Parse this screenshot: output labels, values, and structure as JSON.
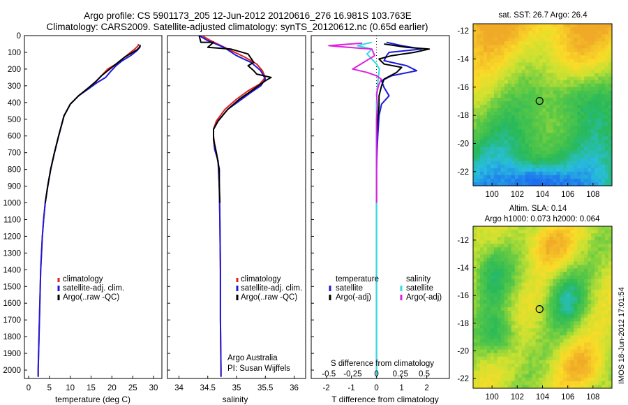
{
  "header": {
    "line1": "Argo profile: CS 5901173_205 12-Jun-2012 20120616_276 16.981S 103.763E",
    "line2": "Climatology: CARS2009. Satellite-adjusted climatology: synTS_20120612.nc (0.65d earlier)"
  },
  "colors": {
    "clim": "#e02020",
    "sat": "#1a1adc",
    "argo": "#000000",
    "sal_sat": "#33dddd",
    "sal_argo": "#e020e0"
  },
  "chart_data": [
    {
      "id": "temperature",
      "type": "line",
      "xlabel": "temperature (deg C)",
      "ylabel": "",
      "xlim": [
        -1,
        32
      ],
      "ylim": [
        2050,
        0
      ],
      "xticks": [
        "0",
        "5",
        "10",
        "15",
        "20",
        "25",
        "30"
      ],
      "xtick_values": [
        0,
        5,
        10,
        15,
        20,
        25,
        30
      ],
      "yticks": [
        "0",
        "100",
        "200",
        "300",
        "400",
        "500",
        "600",
        "700",
        "800",
        "900",
        "1000",
        "1100",
        "1200",
        "1300",
        "1400",
        "1500",
        "1600",
        "1700",
        "1800",
        "1900",
        "2000"
      ],
      "ytick_values": [
        0,
        100,
        200,
        300,
        400,
        500,
        600,
        700,
        800,
        900,
        1000,
        1100,
        1200,
        1300,
        1400,
        1500,
        1600,
        1700,
        1800,
        1900,
        2000
      ],
      "legend": [
        "climatology",
        "satellite-adj. clim.",
        "Argo(..raw -QC)"
      ],
      "series": [
        {
          "name": "climatology",
          "color_key": "clim",
          "points": [
            [
              26.4,
              50
            ],
            [
              26.3,
              60
            ],
            [
              25.5,
              80
            ],
            [
              24,
              110
            ],
            [
              22.5,
              140
            ],
            [
              21,
              170
            ],
            [
              19,
              200
            ],
            [
              17.5,
              240
            ],
            [
              16,
              280
            ],
            [
              14,
              320
            ],
            [
              12,
              360
            ],
            [
              10,
              410
            ],
            [
              8.5,
              480
            ],
            [
              7.2,
              600
            ],
            [
              6.2,
              700
            ],
            [
              5.3,
              800
            ],
            [
              4.6,
              900
            ],
            [
              4.0,
              1000
            ],
            [
              3.6,
              1100
            ],
            [
              3.3,
              1200
            ],
            [
              3.1,
              1300
            ],
            [
              2.9,
              1400
            ],
            [
              2.8,
              1500
            ],
            [
              2.7,
              1600
            ],
            [
              2.6,
              1700
            ],
            [
              2.5,
              1800
            ],
            [
              2.4,
              1900
            ],
            [
              2.3,
              2000
            ],
            [
              2.3,
              2040
            ]
          ]
        },
        {
          "name": "satellite-adj. clim.",
          "color_key": "sat",
          "points": [
            [
              26.8,
              60
            ],
            [
              26.7,
              70
            ],
            [
              26,
              90
            ],
            [
              24.5,
              120
            ],
            [
              22.5,
              150
            ],
            [
              21,
              180
            ],
            [
              19.5,
              220
            ],
            [
              18.5,
              250
            ],
            [
              16.5,
              280
            ],
            [
              14.3,
              320
            ],
            [
              12,
              360
            ],
            [
              10,
              410
            ],
            [
              8.5,
              480
            ],
            [
              7.2,
              600
            ],
            [
              6.2,
              700
            ],
            [
              5.3,
              800
            ],
            [
              4.6,
              900
            ],
            [
              4.0,
              1000
            ],
            [
              3.6,
              1100
            ],
            [
              3.3,
              1200
            ],
            [
              3.1,
              1300
            ],
            [
              2.9,
              1400
            ],
            [
              2.8,
              1500
            ],
            [
              2.7,
              1600
            ],
            [
              2.6,
              1700
            ],
            [
              2.5,
              1800
            ],
            [
              2.4,
              1900
            ],
            [
              2.3,
              2000
            ],
            [
              2.3,
              2040
            ]
          ]
        },
        {
          "name": "Argo(..raw -QC)",
          "color_key": "argo",
          "points": [
            [
              26.8,
              55
            ],
            [
              26.6,
              70
            ],
            [
              26,
              85
            ],
            [
              25,
              100
            ],
            [
              23,
              130
            ],
            [
              21.5,
              160
            ],
            [
              19.5,
              200
            ],
            [
              17.5,
              240
            ],
            [
              16.3,
              270
            ],
            [
              14.5,
              310
            ],
            [
              12,
              360
            ],
            [
              10,
              410
            ],
            [
              8.5,
              480
            ],
            [
              7.2,
              600
            ],
            [
              6.2,
              700
            ],
            [
              5.3,
              800
            ],
            [
              4.6,
              900
            ],
            [
              4.0,
              1000
            ]
          ]
        }
      ]
    },
    {
      "id": "salinity",
      "type": "line",
      "xlabel": "salinity",
      "xlim": [
        33.8,
        36.2
      ],
      "ylim": [
        2050,
        0
      ],
      "xticks": [
        "34",
        "34.5",
        "35",
        "35.5",
        "36"
      ],
      "xtick_values": [
        34,
        34.5,
        35,
        35.5,
        36
      ],
      "legend": [
        "climatology",
        "satellite-adj. clim.",
        "Argo(..raw -QC)"
      ],
      "annotation": [
        "Argo Australia",
        "PI: Susan Wijffels"
      ],
      "series": [
        {
          "name": "climatology",
          "color_key": "clim",
          "points": [
            [
              34.4,
              0
            ],
            [
              34.55,
              30
            ],
            [
              34.85,
              80
            ],
            [
              35.15,
              130
            ],
            [
              35.35,
              170
            ],
            [
              35.45,
              210
            ],
            [
              35.5,
              250
            ],
            [
              35.4,
              290
            ],
            [
              35.2,
              330
            ],
            [
              35.0,
              380
            ],
            [
              34.8,
              440
            ],
            [
              34.65,
              510
            ],
            [
              34.6,
              560
            ],
            [
              34.6,
              600
            ],
            [
              34.62,
              650
            ],
            [
              34.65,
              700
            ],
            [
              34.68,
              760
            ],
            [
              34.7,
              900
            ],
            [
              34.71,
              1100
            ],
            [
              34.72,
              1400
            ],
            [
              34.72,
              1700
            ],
            [
              34.73,
              2000
            ],
            [
              34.73,
              2040
            ]
          ]
        },
        {
          "name": "satellite-adj. clim.",
          "color_key": "sat",
          "points": [
            [
              34.35,
              0
            ],
            [
              34.5,
              30
            ],
            [
              34.78,
              70
            ],
            [
              35.0,
              120
            ],
            [
              35.25,
              160
            ],
            [
              35.42,
              210
            ],
            [
              35.5,
              260
            ],
            [
              35.42,
              300
            ],
            [
              35.25,
              340
            ],
            [
              35.05,
              390
            ],
            [
              34.85,
              440
            ],
            [
              34.68,
              510
            ],
            [
              34.6,
              560
            ],
            [
              34.6,
              620
            ],
            [
              34.62,
              680
            ],
            [
              34.68,
              750
            ],
            [
              34.7,
              900
            ],
            [
              34.71,
              1100
            ],
            [
              34.72,
              1400
            ],
            [
              34.72,
              1700
            ],
            [
              34.73,
              2000
            ],
            [
              34.73,
              2040
            ]
          ]
        },
        {
          "name": "Argo(..raw -QC)",
          "color_key": "argo",
          "points": [
            [
              34.35,
              0
            ],
            [
              34.38,
              40
            ],
            [
              34.6,
              40
            ],
            [
              34.5,
              70
            ],
            [
              34.9,
              80
            ],
            [
              35.2,
              110
            ],
            [
              35.3,
              160
            ],
            [
              35.2,
              180
            ],
            [
              35.3,
              210
            ],
            [
              35.35,
              230
            ],
            [
              35.6,
              250
            ],
            [
              35.5,
              270
            ],
            [
              35.3,
              320
            ],
            [
              35.05,
              380
            ],
            [
              34.85,
              440
            ],
            [
              34.68,
              510
            ],
            [
              34.6,
              560
            ],
            [
              34.6,
              620
            ],
            [
              34.65,
              700
            ],
            [
              34.7,
              800
            ],
            [
              34.7,
              900
            ],
            [
              34.71,
              1000
            ]
          ]
        }
      ]
    },
    {
      "id": "difference",
      "type": "line",
      "xlabel": "T difference from climatology",
      "xlabel_top": "S difference from climatology",
      "xlim": [
        -2.6,
        2.9
      ],
      "ylim": [
        2050,
        0
      ],
      "xticks": [
        "-2",
        "-1",
        "0",
        "1",
        "2"
      ],
      "xtick_values": [
        -2,
        -1,
        0,
        1,
        2
      ],
      "sticks": [
        "-0.5",
        "-0.25",
        "0",
        "0.25",
        "0.5"
      ],
      "stick_values": [
        -0.5,
        -0.25,
        0,
        0.25,
        0.5
      ],
      "legend_temp": [
        "temperature",
        "satellite",
        "Argo(-adj)"
      ],
      "legend_sal": [
        "salinity",
        "satellite",
        "Argo(-adj)"
      ],
      "series": [
        {
          "name": "T satellite",
          "color_key": "sat",
          "points": [
            [
              0.4,
              40
            ],
            [
              1.0,
              60
            ],
            [
              1.8,
              80
            ],
            [
              0.5,
              100
            ],
            [
              0.4,
              120
            ],
            [
              0.3,
              150
            ],
            [
              1.2,
              180
            ],
            [
              1.6,
              210
            ],
            [
              0.6,
              240
            ],
            [
              0.2,
              270
            ],
            [
              0.3,
              310
            ],
            [
              0.5,
              360
            ],
            [
              0.2,
              410
            ],
            [
              0.1,
              480
            ],
            [
              0.05,
              600
            ],
            [
              0.02,
              700
            ],
            [
              0,
              800
            ],
            [
              0,
              1000
            ],
            [
              0,
              1300
            ],
            [
              0,
              1600
            ],
            [
              0,
              1900
            ],
            [
              0,
              2040
            ]
          ]
        },
        {
          "name": "T Argo(-adj)",
          "color_key": "argo",
          "points": [
            [
              0.3,
              50
            ],
            [
              1.2,
              70
            ],
            [
              2.1,
              80
            ],
            [
              1.5,
              100
            ],
            [
              0.6,
              120
            ],
            [
              0.1,
              140
            ],
            [
              0.3,
              170
            ],
            [
              1.0,
              190
            ],
            [
              0.8,
              220
            ],
            [
              0.3,
              260
            ],
            [
              0.2,
              300
            ],
            [
              0.1,
              360
            ],
            [
              0.1,
              420
            ],
            [
              0.05,
              500
            ],
            [
              0,
              600
            ],
            [
              0,
              1000
            ]
          ]
        },
        {
          "name": "S satellite",
          "color_key": "sal_sat",
          "points": [
            [
              -0.05,
              40
            ],
            [
              -0.2,
              60
            ],
            [
              -0.05,
              80
            ],
            [
              -0.1,
              110
            ],
            [
              -0.05,
              140
            ],
            [
              0,
              170
            ],
            [
              0.03,
              200
            ],
            [
              0.02,
              250
            ],
            [
              0.01,
              300
            ],
            [
              0,
              400
            ],
            [
              0,
              600
            ],
            [
              0,
              1000
            ],
            [
              0,
              1400
            ],
            [
              0,
              1700
            ],
            [
              0,
              2040
            ]
          ]
        },
        {
          "name": "S Argo(-adj)",
          "color_key": "sal_argo",
          "points": [
            [
              -0.15,
              45
            ],
            [
              -0.5,
              60
            ],
            [
              -0.3,
              70
            ],
            [
              -0.05,
              80
            ],
            [
              -0.02,
              120
            ],
            [
              -0.25,
              200
            ],
            [
              -0.1,
              220
            ],
            [
              0,
              240
            ],
            [
              0.05,
              260
            ],
            [
              0.02,
              300
            ],
            [
              0,
              350
            ],
            [
              0.01,
              420
            ],
            [
              0,
              500
            ],
            [
              0,
              700
            ],
            [
              0,
              1000
            ]
          ]
        }
      ]
    },
    {
      "id": "sst_map",
      "type": "heatmap",
      "title": "sat. SST: 26.7  Argo: 26.4",
      "xticks": [
        "100",
        "102",
        "104",
        "106",
        "108"
      ],
      "xtick_values": [
        100,
        102,
        104,
        106,
        108
      ],
      "yticks": [
        "-12",
        "-14",
        "-16",
        "-18",
        "-20",
        "-22"
      ],
      "ytick_values": [
        -12,
        -14,
        -16,
        -18,
        -20,
        -22
      ],
      "xlim": [
        98.5,
        109.5
      ],
      "ylim": [
        -23.0,
        -11.5
      ],
      "marker": [
        103.763,
        -16.981
      ]
    },
    {
      "id": "sla_map",
      "type": "heatmap",
      "title_line1": "Altim. SLA: 0.14",
      "title_line2": "Argo h1000: 0.073 h2000: 0.064",
      "xticks": [
        "100",
        "102",
        "104",
        "106",
        "108"
      ],
      "xtick_values": [
        100,
        102,
        104,
        106,
        108
      ],
      "yticks": [
        "-12",
        "-14",
        "-16",
        "-18",
        "-20",
        "-22"
      ],
      "ytick_values": [
        -12,
        -14,
        -16,
        -18,
        -20,
        -22
      ],
      "xlim": [
        98.5,
        109.5
      ],
      "ylim": [
        -22.7,
        -11.0
      ],
      "marker": [
        103.763,
        -16.981
      ]
    }
  ],
  "footer_stamp": "IMOS 18-Jun-2012 17:01:54"
}
